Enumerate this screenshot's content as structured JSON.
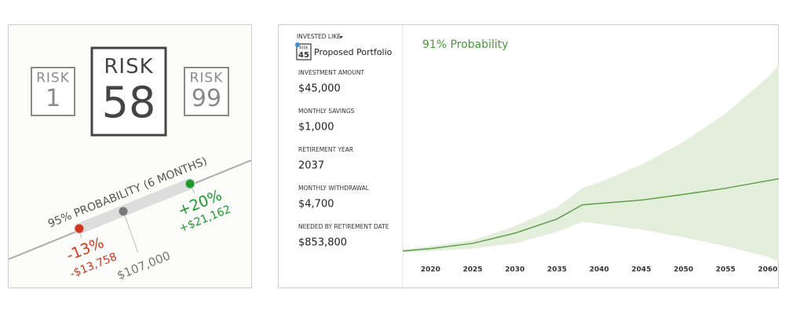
{
  "risk_card": {
    "badges": [
      {
        "label": "RISK",
        "number": 1
      },
      {
        "label": "RISK",
        "number": 58
      },
      {
        "label": "RISK",
        "number": 99
      }
    ],
    "range": {
      "label": "95% PROBABILITY (6 MONTHS)",
      "low": {
        "percent": "-13%",
        "amount": "-$13,758"
      },
      "current": "$107,000",
      "high": {
        "percent": "+20%",
        "amount": "+$21,162"
      }
    }
  },
  "form": {
    "invested_like": "INVESTED LIKE",
    "portfolio": {
      "badge_label": "RISK",
      "risk": 45,
      "name": "Proposed Portfolio"
    },
    "fields": [
      {
        "label": "INVESTMENT AMOUNT",
        "value": "$45,000"
      },
      {
        "label": "MONTHLY SAVINGS",
        "value": "$1,000"
      },
      {
        "label": "RETIREMENT YEAR",
        "value": "2037"
      },
      {
        "label": "MONTHLY WITHDRAWAL",
        "value": "$4,700"
      },
      {
        "label": "NEEDED BY RETIREMENT DATE",
        "value": "$853,800"
      }
    ]
  },
  "chart_data": {
    "type": "line",
    "title": "91% Probability",
    "x": [
      2016.7,
      2020,
      2025,
      2030,
      2035,
      2038,
      2040,
      2045,
      2050,
      2055,
      2060,
      2061.3
    ],
    "series": [
      {
        "color": "#5f9e4c",
        "values": [
          4.5,
          5.5,
          7.7,
          12,
          18,
          24,
          24.6,
          26,
          28.4,
          31,
          34.2,
          35
        ]
      }
    ],
    "band": {
      "color": "#e3eedb",
      "upper": [
        5,
        6.5,
        9,
        15,
        23,
        31,
        33.5,
        41,
        50.6,
        62.6,
        78,
        83
      ],
      "lower": [
        3.9,
        4.4,
        5.5,
        7.7,
        12.6,
        16.8,
        16,
        13.5,
        10.3,
        6.5,
        2,
        0
      ]
    },
    "xlim": [
      2016.7,
      2061.3
    ],
    "ylim": [
      0,
      100
    ],
    "xticks": [
      2020,
      2025,
      2030,
      2035,
      2040,
      2045,
      2050,
      2055,
      2060
    ]
  }
}
